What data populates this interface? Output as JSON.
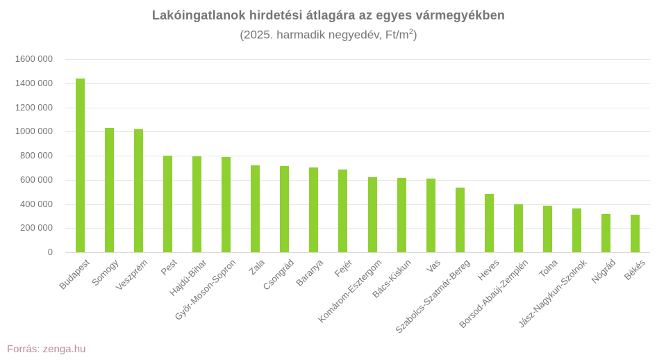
{
  "page": {
    "title": "Lakóingatlanok hirdetési átlagára az egyes vármegyékben",
    "subtitle_prefix": "(2025. harmadik negyedév, Ft/m",
    "subtitle_sup": "2",
    "subtitle_suffix": ")",
    "source_label": "Forrás: zenga.hu"
  },
  "colors": {
    "bar": "#8ED02F",
    "title_text": "#757575",
    "axis_text": "#757575",
    "gridline": "#e6e6e6",
    "baseline": "#d9d9d9",
    "source_text": "#BD8AA1",
    "background": "#ffffff"
  },
  "chart_data": {
    "type": "bar",
    "title": "Lakóingatlanok hirdetési átlagára az egyes vármegyékben",
    "subtitle": "(2025. harmadik negyedév, Ft/m²)",
    "xlabel": "",
    "ylabel": "",
    "ylim": [
      0,
      1600000
    ],
    "ytick_step": 200000,
    "ytick_labels_top_down": [
      "1600 000",
      "1400 000",
      "1200 000",
      "1000 000",
      "800 000",
      "600 000",
      "400 000",
      "200 000",
      "0"
    ],
    "grid": "horizontal",
    "legend": "none",
    "bar_color": "#8ED02F",
    "categories": [
      "Budapest",
      "Somogy",
      "Veszprém",
      "Pest",
      "Hajdú-Bihar",
      "Győr-Moson-Sopron",
      "Zala",
      "Csongrád",
      "Baranya",
      "Fejér",
      "Komárom-Esztergom",
      "Bács-Kiskun",
      "Vas",
      "Szabolcs-Szatmár-Bereg",
      "Heves",
      "Borsod-Abaúj-Zemplén",
      "Tolna",
      "Jász-Nagykun-Szolnok",
      "Nógrád",
      "Békés"
    ],
    "values": [
      1440000,
      1030000,
      1020000,
      800000,
      795000,
      790000,
      720000,
      712000,
      703000,
      685000,
      620000,
      616000,
      612000,
      538000,
      483000,
      398000,
      383000,
      365000,
      318000,
      313000
    ],
    "source": "Forrás: zenga.hu"
  }
}
